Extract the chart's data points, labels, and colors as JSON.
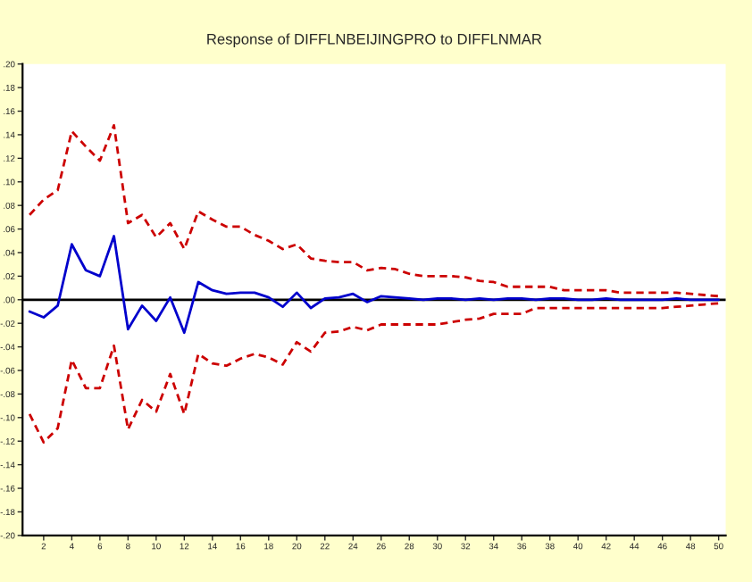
{
  "chart_data": {
    "type": "line",
    "title": "Response of DIFFLNBEIJINGPRO to DIFFLNMAR",
    "x": [
      1,
      2,
      3,
      4,
      5,
      6,
      7,
      8,
      9,
      10,
      11,
      12,
      13,
      14,
      15,
      16,
      17,
      18,
      19,
      20,
      21,
      22,
      23,
      24,
      25,
      26,
      27,
      28,
      29,
      30,
      31,
      32,
      33,
      34,
      35,
      36,
      37,
      38,
      39,
      40,
      41,
      42,
      43,
      44,
      45,
      46,
      47,
      48,
      49,
      50
    ],
    "series": [
      {
        "color": "#0000cc",
        "line_style": "solid",
        "values": [
          -0.01,
          -0.015,
          -0.005,
          0.047,
          0.025,
          0.02,
          0.054,
          -0.025,
          -0.005,
          -0.018,
          0.002,
          -0.028,
          0.015,
          0.008,
          0.005,
          0.006,
          0.006,
          0.002,
          -0.006,
          0.006,
          -0.007,
          0.001,
          0.002,
          0.005,
          -0.002,
          0.003,
          0.002,
          0.001,
          0.0,
          0.001,
          0.001,
          0.0,
          0.001,
          0.0,
          0.001,
          0.001,
          0.0,
          0.001,
          0.001,
          0.0,
          0.0,
          0.001,
          0.0,
          0.0,
          0.0,
          0.0,
          0.001,
          0.0,
          0.0,
          0.0
        ]
      },
      {
        "color": "#cc0000",
        "line_style": "dashed",
        "values": [
          0.072,
          0.085,
          0.093,
          0.143,
          0.13,
          0.118,
          0.148,
          0.065,
          0.072,
          0.053,
          0.065,
          0.043,
          0.075,
          0.068,
          0.062,
          0.062,
          0.055,
          0.05,
          0.043,
          0.047,
          0.035,
          0.033,
          0.032,
          0.032,
          0.025,
          0.027,
          0.026,
          0.022,
          0.02,
          0.02,
          0.02,
          0.019,
          0.016,
          0.015,
          0.011,
          0.011,
          0.011,
          0.011,
          0.008,
          0.008,
          0.008,
          0.008,
          0.006,
          0.006,
          0.006,
          0.006,
          0.006,
          0.005,
          0.004,
          0.003
        ]
      },
      {
        "color": "#cc0000",
        "line_style": "dashed",
        "values": [
          -0.097,
          -0.121,
          -0.109,
          -0.051,
          -0.075,
          -0.075,
          -0.039,
          -0.11,
          -0.085,
          -0.095,
          -0.063,
          -0.097,
          -0.046,
          -0.054,
          -0.056,
          -0.05,
          -0.046,
          -0.049,
          -0.055,
          -0.036,
          -0.044,
          -0.028,
          -0.027,
          -0.023,
          -0.026,
          -0.021,
          -0.021,
          -0.021,
          -0.021,
          -0.021,
          -0.019,
          -0.017,
          -0.016,
          -0.012,
          -0.012,
          -0.012,
          -0.007,
          -0.007,
          -0.007,
          -0.007,
          -0.007,
          -0.007,
          -0.007,
          -0.007,
          -0.007,
          -0.007,
          -0.006,
          -0.005,
          -0.004,
          -0.003
        ]
      }
    ],
    "xlim": [
      0.5,
      50.5
    ],
    "ylim": [
      -0.2,
      0.2
    ],
    "xticks": [
      2,
      4,
      6,
      8,
      10,
      12,
      14,
      16,
      18,
      20,
      22,
      24,
      26,
      28,
      30,
      32,
      34,
      36,
      38,
      40,
      42,
      44,
      46,
      48,
      50
    ],
    "yticks": [
      {
        "value": -0.2,
        "label": "-.20"
      },
      {
        "value": -0.18,
        "label": "-.18"
      },
      {
        "value": -0.16,
        "label": "-.16"
      },
      {
        "value": -0.14,
        "label": "-.14"
      },
      {
        "value": -0.12,
        "label": "-.12"
      },
      {
        "value": -0.1,
        "label": "-.10"
      },
      {
        "value": -0.08,
        "label": "-.08"
      },
      {
        "value": -0.06,
        "label": "-.06"
      },
      {
        "value": -0.04,
        "label": "-.04"
      },
      {
        "value": -0.02,
        "label": "-.02"
      },
      {
        "value": 0,
        "label": ".00"
      },
      {
        "value": 0.02,
        "label": ".02"
      },
      {
        "value": 0.04,
        "label": ".04"
      },
      {
        "value": 0.06,
        "label": ".06"
      },
      {
        "value": 0.08,
        "label": ".08"
      },
      {
        "value": 0.1,
        "label": ".10"
      },
      {
        "value": 0.12,
        "label": ".12"
      },
      {
        "value": 0.14,
        "label": ".14"
      },
      {
        "value": 0.16,
        "label": ".16"
      },
      {
        "value": 0.18,
        "label": ".18"
      },
      {
        "value": 0.2,
        "label": ".20"
      }
    ],
    "ref_lines": [
      {
        "axis": "y",
        "value": 0,
        "color": "#000000",
        "line_style": "solid"
      }
    ],
    "grid": false,
    "legend": false,
    "marker": "none"
  }
}
